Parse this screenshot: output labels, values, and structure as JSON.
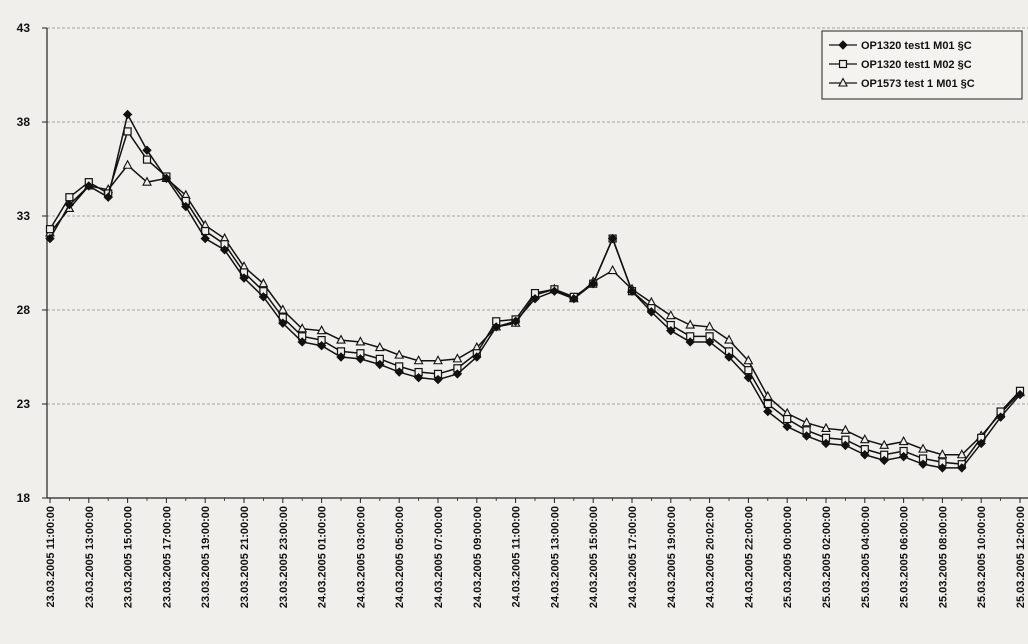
{
  "chart_data": {
    "type": "line",
    "title": "",
    "xlabel": "",
    "ylabel": "",
    "ylim": [
      18,
      43
    ],
    "yticks": [
      18,
      23,
      28,
      33,
      38,
      43
    ],
    "grid": "horizontal dashed",
    "legend_position": "top-right",
    "x_tick_labels": [
      "23.03.2005 11:00:00",
      "23.03.2005 13:00:00",
      "23.03.2005 15:00:00",
      "23.03.2005 17:00:00",
      "23.03.2005 19:00:00",
      "23.03.2005 21:00:00",
      "23.03.2005 23:00:00",
      "24.03.2005 01:00:00",
      "24.03.2005 03:00:00",
      "24.03.2005 05:00:00",
      "24.03.2005 07:00:00",
      "24.03.2005 09:00:00",
      "24.03.2005 11:00:00",
      "24.03.2005 13:00:00",
      "24.03.2005 15:00:00",
      "24.03.2005 17:00:00",
      "24.03.2005 19:00:00",
      "24.03.2005 20:02:00",
      "24.03.2005 22:00:00",
      "25.03.2005 00:00:00",
      "25.03.2005 02:00:00",
      "25.03.2005 04:00:00",
      "25.03.2005 06:00:00",
      "25.03.2005 08:00:00",
      "25.03.2005 10:00:00",
      "25.03.2005 12:00:00"
    ],
    "series": [
      {
        "name": "OP1320 test1 M01 §C",
        "marker": "diamond",
        "values": [
          31.8,
          33.6,
          34.6,
          34.0,
          38.4,
          36.5,
          35.0,
          33.5,
          31.8,
          31.2,
          29.7,
          28.7,
          27.3,
          26.3,
          26.1,
          25.5,
          25.4,
          25.1,
          24.7,
          24.4,
          24.3,
          24.6,
          25.5,
          27.1,
          27.4,
          28.6,
          29.0,
          28.6,
          29.4,
          31.8,
          29.0,
          27.9,
          26.9,
          26.3,
          26.3,
          25.5,
          24.4,
          22.6,
          21.8,
          21.3,
          20.9,
          20.8,
          20.3,
          20.0,
          20.2,
          19.8,
          19.6,
          19.6,
          20.9,
          22.3,
          23.5
        ]
      },
      {
        "name": "OP1320 test1 M02 §C",
        "marker": "square",
        "values": [
          32.3,
          34.0,
          34.8,
          34.2,
          37.5,
          36.0,
          35.1,
          33.8,
          32.2,
          31.5,
          30.0,
          29.0,
          27.6,
          26.6,
          26.4,
          25.8,
          25.7,
          25.4,
          25.0,
          24.7,
          24.6,
          24.9,
          25.7,
          27.4,
          27.5,
          28.9,
          29.1,
          28.7,
          29.4,
          31.8,
          29.0,
          28.1,
          27.2,
          26.6,
          26.6,
          25.8,
          24.8,
          23.0,
          22.2,
          21.6,
          21.2,
          21.1,
          20.6,
          20.3,
          20.5,
          20.1,
          19.9,
          19.8,
          21.2,
          22.6,
          23.7
        ]
      },
      {
        "name": "OP1573 test 1 M01 §C",
        "marker": "triangle",
        "values": [
          32.1,
          33.4,
          34.6,
          34.4,
          35.7,
          34.8,
          35.0,
          34.1,
          32.5,
          31.8,
          30.3,
          29.4,
          28.0,
          27.0,
          26.9,
          26.4,
          26.3,
          26.0,
          25.6,
          25.3,
          25.3,
          25.4,
          26.0,
          27.1,
          27.3,
          28.8,
          29.1,
          28.6,
          29.5,
          30.1,
          29.1,
          28.4,
          27.7,
          27.2,
          27.1,
          26.4,
          25.3,
          23.4,
          22.5,
          22.0,
          21.7,
          21.6,
          21.1,
          20.8,
          21.0,
          20.6,
          20.3,
          20.3,
          21.3,
          22.5,
          23.6
        ]
      }
    ]
  }
}
